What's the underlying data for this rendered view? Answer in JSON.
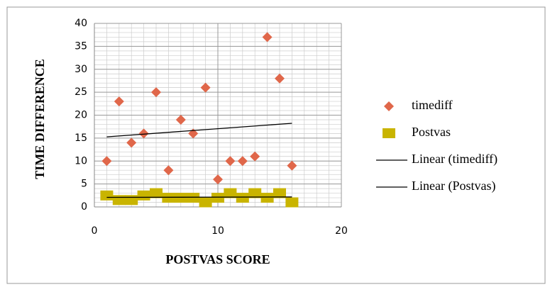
{
  "chart_data": {
    "type": "scatter",
    "x_label": "POSTVAS SCORE",
    "y_label": "TIME DIFFERENCE",
    "xlim": [
      0,
      20
    ],
    "xticks": [
      0,
      10,
      20
    ],
    "ylim": [
      0,
      40
    ],
    "yticks": [
      0,
      5,
      10,
      15,
      20,
      25,
      30,
      35,
      40
    ],
    "grid": true,
    "legend": "right",
    "series": [
      {
        "name": "timediff",
        "color": "#e0674a",
        "marker": "diamond",
        "trendline": "Linear (timediff)",
        "x": [
          1,
          2,
          3,
          4,
          5,
          6,
          7,
          8,
          9,
          10,
          11,
          12,
          13,
          14,
          15,
          16
        ],
        "values": [
          10,
          23,
          14,
          16,
          25,
          8,
          19,
          16,
          26,
          6,
          10,
          10,
          11,
          37,
          28,
          9
        ]
      },
      {
        "name": "Postvas",
        "color": "#c9b400",
        "marker": "square",
        "trendline": "Linear (Postvas)",
        "x": [
          1,
          2,
          3,
          4,
          5,
          6,
          7,
          8,
          9,
          10,
          11,
          12,
          13,
          14,
          15,
          16
        ],
        "values": [
          2.5,
          1.5,
          1.5,
          2.5,
          3,
          2,
          2,
          2,
          1,
          2,
          3,
          2,
          3,
          2,
          3,
          1
        ]
      }
    ]
  }
}
